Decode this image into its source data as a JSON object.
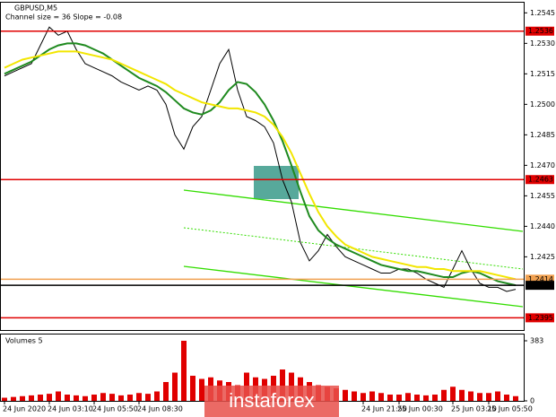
{
  "chart_data": [
    {
      "type": "line",
      "title": "GBPUSD,M5",
      "subtitle": "Channel size = 36 Slope = -0.08",
      "annotation": "instaforex",
      "categories": [
        "24 Jun 2020",
        null,
        null,
        null,
        null,
        "24 Jun 03:10",
        null,
        null,
        null,
        null,
        "24 Jun 05:50",
        null,
        null,
        null,
        null,
        "24 Jun 08:30",
        null,
        null,
        null,
        null,
        null,
        null,
        null,
        null,
        null,
        null,
        null,
        null,
        null,
        null,
        null,
        null,
        null,
        null,
        null,
        null,
        null,
        null,
        null,
        null,
        "24 Jun 21:50",
        null,
        null,
        null,
        "25 Jun 00:30",
        null,
        null,
        null,
        null,
        null,
        "25 Jun 03:10",
        null,
        null,
        null,
        "25 Jun 05:50",
        null,
        null,
        null
      ],
      "series": [
        {
          "color": "#000000",
          "values": [
            1.2514,
            1.2516,
            1.2518,
            1.252,
            1.2529,
            1.2538,
            1.2534,
            1.2536,
            1.2527,
            1.252,
            1.2518,
            1.2516,
            1.2514,
            1.2511,
            1.2509,
            1.2507,
            1.2509,
            1.2507,
            1.25,
            1.2485,
            1.2478,
            1.2489,
            1.2494,
            1.2507,
            1.252,
            1.2527,
            1.2507,
            1.2494,
            1.2492,
            1.2489,
            1.2481,
            1.2463,
            1.2452,
            1.2432,
            1.2423,
            1.2428,
            1.2436,
            1.243,
            1.2425,
            1.2423,
            1.2421,
            1.2419,
            1.2417,
            1.2417,
            1.2419,
            1.2419,
            1.2417,
            1.2414,
            1.2412,
            1.241,
            1.2419,
            1.2428,
            1.2419,
            1.2412,
            1.241,
            1.241,
            1.2408,
            1.2409
          ]
        },
        {
          "color": "#1f8a1f",
          "values": [
            1.2515,
            1.2517,
            1.2519,
            1.2521,
            1.2524,
            1.2527,
            1.2529,
            1.253,
            1.253,
            1.2529,
            1.2527,
            1.2525,
            1.2522,
            1.2519,
            1.2516,
            1.2513,
            1.2511,
            1.2509,
            1.2506,
            1.2502,
            1.2498,
            1.2496,
            1.2495,
            1.2497,
            1.2501,
            1.2507,
            1.2511,
            1.251,
            1.2506,
            1.25,
            1.2492,
            1.2482,
            1.247,
            1.2457,
            1.2445,
            1.2438,
            1.2434,
            1.2431,
            1.2429,
            1.2427,
            1.2425,
            1.2423,
            1.2421,
            1.242,
            1.2419,
            1.2418,
            1.2418,
            1.2417,
            1.2416,
            1.2415,
            1.2415,
            1.2417,
            1.2418,
            1.2417,
            1.2415,
            1.2413,
            1.2412,
            1.2411
          ]
        },
        {
          "color": "#f2e600",
          "values": [
            1.2518,
            1.252,
            1.2522,
            1.2523,
            1.2524,
            1.2525,
            1.2526,
            1.2526,
            1.2526,
            1.2525,
            1.2524,
            1.2523,
            1.2522,
            1.252,
            1.2518,
            1.2516,
            1.2514,
            1.2512,
            1.251,
            1.2507,
            1.2505,
            1.2503,
            1.2501,
            1.25,
            1.2499,
            1.2498,
            1.2498,
            1.2497,
            1.2496,
            1.2494,
            1.249,
            1.2484,
            1.2476,
            1.2466,
            1.2456,
            1.2447,
            1.244,
            1.2435,
            1.2431,
            1.2429,
            1.2427,
            1.2425,
            1.2424,
            1.2423,
            1.2422,
            1.2421,
            1.242,
            1.242,
            1.2419,
            1.2419,
            1.2418,
            1.2418,
            1.2418,
            1.2418,
            1.2417,
            1.2416,
            1.2415,
            1.2414
          ]
        }
      ],
      "levels": [
        {
          "value": 1.2536,
          "color": "#e00000"
        },
        {
          "value": 1.2463,
          "color": "#e00000"
        },
        {
          "value": 1.2395,
          "color": "#e00000"
        },
        {
          "value": 1.2414,
          "color": "#f0a050"
        },
        {
          "value": 1.2411,
          "color": "#000000"
        }
      ],
      "ylim": [
        1.2389,
        1.255
      ],
      "yticks": [
        1.2545,
        {
          "value": 1.253,
          "label": "1.2530"
        },
        1.2515,
        {
          "value": 1.25,
          "label": "1.2500"
        },
        1.2485,
        {
          "value": 1.247,
          "label": "1.2470"
        },
        1.2455,
        {
          "value": 1.244,
          "label": "1.2440"
        },
        1.2425
      ]
    },
    {
      "type": "bar",
      "title": "Volumes 5",
      "color": "#e00000",
      "values": [
        20,
        25,
        30,
        35,
        40,
        45,
        60,
        40,
        35,
        30,
        40,
        50,
        45,
        35,
        40,
        50,
        45,
        60,
        120,
        180,
        383,
        160,
        140,
        150,
        130,
        120,
        100,
        180,
        150,
        140,
        160,
        200,
        180,
        150,
        120,
        100,
        90,
        80,
        70,
        60,
        50,
        60,
        50,
        40,
        40,
        50,
        40,
        35,
        40,
        70,
        90,
        70,
        60,
        50,
        50,
        60,
        40,
        30
      ],
      "ylim": [
        0,
        383
      ],
      "yticks": [
        0,
        383
      ]
    }
  ]
}
